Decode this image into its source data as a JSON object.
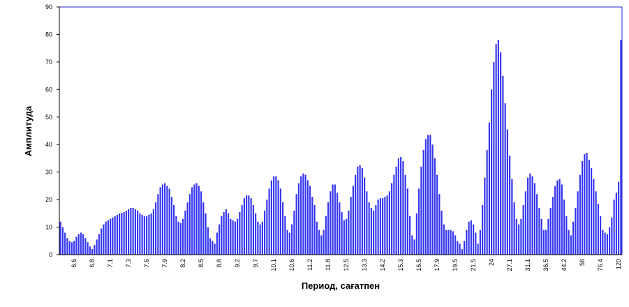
{
  "chart_data": {
    "type": "bar",
    "x_label": "Период, сағатпен",
    "y_label": "Амплитуда",
    "color": "#3333ee",
    "border_color": "#2222cc",
    "ylim": [
      0,
      90
    ],
    "yticks": [
      0,
      10,
      20,
      30,
      40,
      50,
      60,
      70,
      80,
      90
    ],
    "grid": false,
    "categories": [
      null,
      null,
      null,
      null,
      null,
      null,
      "6.6",
      null,
      null,
      null,
      null,
      null,
      null,
      null,
      "6.8",
      null,
      null,
      null,
      null,
      null,
      null,
      null,
      "7.1",
      null,
      null,
      null,
      null,
      null,
      null,
      null,
      "7.3",
      null,
      null,
      null,
      null,
      null,
      null,
      null,
      "7.6",
      null,
      null,
      null,
      null,
      null,
      null,
      null,
      "7.9",
      null,
      null,
      null,
      null,
      null,
      null,
      null,
      "8.2",
      null,
      null,
      null,
      null,
      null,
      null,
      null,
      "8.5",
      null,
      null,
      null,
      null,
      null,
      null,
      null,
      "8.8",
      null,
      null,
      null,
      null,
      null,
      null,
      null,
      "9.2",
      null,
      null,
      null,
      null,
      null,
      null,
      null,
      "9.7",
      null,
      null,
      null,
      null,
      null,
      null,
      null,
      "10.1",
      null,
      null,
      null,
      null,
      null,
      null,
      null,
      "10.6",
      null,
      null,
      null,
      null,
      null,
      null,
      null,
      "11.2",
      null,
      null,
      null,
      null,
      null,
      null,
      null,
      "11.8",
      null,
      null,
      null,
      null,
      null,
      null,
      null,
      "12.5",
      null,
      null,
      null,
      null,
      null,
      null,
      null,
      "13.3",
      null,
      null,
      null,
      null,
      null,
      null,
      null,
      "14.2",
      null,
      null,
      null,
      null,
      null,
      null,
      null,
      "15.3",
      null,
      null,
      null,
      null,
      null,
      null,
      null,
      "16.5",
      null,
      null,
      null,
      null,
      null,
      null,
      null,
      "17.9",
      null,
      null,
      null,
      null,
      null,
      null,
      null,
      "19.5",
      null,
      null,
      null,
      null,
      null,
      null,
      null,
      "21.5",
      null,
      null,
      null,
      null,
      null,
      null,
      null,
      "24",
      null,
      null,
      null,
      null,
      null,
      null,
      null,
      "27.1",
      null,
      null,
      null,
      null,
      null,
      null,
      null,
      "31.1",
      null,
      null,
      null,
      null,
      null,
      null,
      null,
      "36.5",
      null,
      null,
      null,
      null,
      null,
      null,
      null,
      "44.2",
      null,
      null,
      null,
      null,
      null,
      null,
      null,
      "56",
      null,
      null,
      null,
      null,
      null,
      null,
      null,
      "76.4",
      null,
      null,
      null,
      null,
      null,
      null,
      null,
      "120",
      null
    ],
    "values": [
      12,
      10,
      8,
      6,
      5,
      4.5,
      5,
      6.5,
      7.5,
      8,
      7.5,
      6,
      4.5,
      3,
      2,
      3.5,
      5.5,
      7.5,
      9.5,
      11,
      12,
      12.5,
      13,
      13.5,
      14,
      14.5,
      15,
      15.2,
      15.5,
      16,
      16.5,
      17,
      17,
      16.5,
      16,
      15,
      14.5,
      14,
      14,
      14.5,
      15,
      16.5,
      19,
      22,
      24.5,
      25.5,
      26,
      25,
      24,
      21,
      18,
      14,
      12,
      11.5,
      13,
      16,
      19,
      22,
      24.5,
      25.5,
      26,
      25,
      23,
      19,
      15,
      10,
      6,
      5,
      4,
      8,
      11,
      14,
      15.5,
      16.5,
      15,
      13,
      12.5,
      12,
      13,
      15.5,
      18,
      20.5,
      21.5,
      21.5,
      20.5,
      18,
      15,
      12,
      11,
      12,
      16,
      20,
      24,
      27,
      28.5,
      28.5,
      27,
      24,
      19,
      14,
      9,
      8,
      11,
      16,
      22,
      26,
      28.5,
      29.5,
      29,
      27,
      25,
      21,
      18,
      12,
      9,
      7,
      9,
      14,
      19,
      23,
      25.5,
      25.5,
      22.5,
      19,
      15.5,
      12.5,
      13,
      16,
      21,
      25,
      29,
      32,
      32.5,
      31.5,
      28,
      23,
      19,
      17,
      16,
      18,
      20,
      20.5,
      20.5,
      21,
      21.5,
      23,
      26,
      29,
      32,
      35,
      35.5,
      34,
      29,
      24,
      14,
      7,
      5.5,
      15,
      24,
      32,
      38,
      42,
      43.5,
      43.5,
      40,
      35,
      29,
      22,
      16,
      11,
      9,
      9,
      9,
      8.5,
      7,
      5,
      4,
      2,
      5,
      9,
      12,
      12.5,
      11,
      8,
      4,
      9,
      18,
      28,
      38,
      48,
      60,
      70,
      76.5,
      78,
      73.5,
      65,
      55,
      45.5,
      36,
      27.5,
      19,
      13,
      11,
      13,
      18,
      23,
      28,
      29.5,
      28.5,
      26,
      22,
      17,
      13,
      9,
      9,
      13,
      17,
      21,
      25,
      27,
      27.5,
      25.5,
      20,
      14,
      9,
      7,
      12,
      17,
      23,
      29,
      34,
      36.5,
      37,
      34.5,
      31.5,
      27.5,
      23,
      18.5,
      14,
      9,
      8,
      7.5,
      10,
      13.5,
      20,
      22.5,
      26.5,
      78
    ]
  }
}
